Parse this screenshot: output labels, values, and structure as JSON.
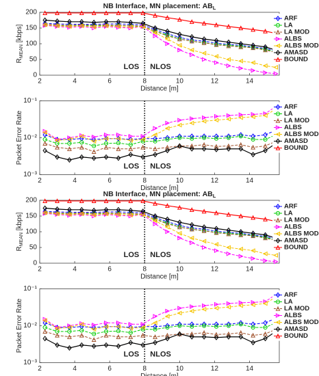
{
  "chart_data": [
    {
      "type": "line",
      "title": "NB Interface, MN placement: AB",
      "title_sub": "L",
      "xlabel": "Distance [m]",
      "ylabel": "R",
      "ylabel_sub": "MEAN",
      "ylabel_unit": " [kbps]",
      "log_y": false,
      "xlim": [
        2,
        15.7
      ],
      "xticks": [
        2,
        4,
        6,
        8,
        10,
        12,
        14
      ],
      "ylim": [
        0,
        200
      ],
      "yticks": [
        0,
        50,
        100,
        150,
        200
      ],
      "vline": 8,
      "annotations": [
        "LOS",
        "NLOS"
      ],
      "legend": "upper right",
      "x": [
        2.3,
        3.0,
        3.7,
        4.4,
        5.1,
        5.8,
        6.5,
        7.2,
        7.9,
        8.6,
        9.3,
        10.0,
        10.7,
        11.4,
        12.1,
        12.8,
        13.5,
        14.2,
        14.9,
        15.5
      ],
      "series": [
        {
          "name": "ARF",
          "color": "#0000ff",
          "marker": "diamond",
          "dash": true,
          "values": [
            165,
            163,
            162,
            162,
            162,
            163,
            163,
            162,
            160,
            145,
            132,
            120,
            112,
            108,
            102,
            98,
            95,
            90,
            85,
            78
          ]
        },
        {
          "name": "LA",
          "color": "#00cc00",
          "marker": "circle",
          "dash": true,
          "values": [
            160,
            158,
            157,
            158,
            157,
            158,
            158,
            157,
            155,
            140,
            128,
            115,
            108,
            103,
            98,
            95,
            92,
            88,
            82,
            75
          ]
        },
        {
          "name": "LA MOD",
          "color": "#a0522d",
          "marker": "up",
          "dash": true,
          "values": [
            162,
            160,
            158,
            160,
            158,
            160,
            158,
            158,
            156,
            140,
            125,
            115,
            108,
            103,
            97,
            93,
            90,
            87,
            80,
            72
          ]
        },
        {
          "name": "ALBS",
          "color": "#ff00ff",
          "marker": "right",
          "dash": true,
          "values": [
            158,
            155,
            152,
            155,
            150,
            155,
            152,
            150,
            155,
            125,
            100,
            80,
            65,
            50,
            40,
            30,
            22,
            15,
            8,
            5
          ]
        },
        {
          "name": "ALBS MOD",
          "color": "#f5c400",
          "marker": "left",
          "dash": true,
          "values": [
            160,
            157,
            155,
            157,
            153,
            157,
            155,
            153,
            155,
            135,
            115,
            95,
            80,
            70,
            60,
            50,
            45,
            40,
            30,
            25
          ]
        },
        {
          "name": "AMASD",
          "color": "#000000",
          "marker": "diamond",
          "dash": false,
          "values": [
            175,
            172,
            170,
            170,
            168,
            170,
            170,
            168,
            165,
            150,
            140,
            130,
            122,
            115,
            110,
            105,
            100,
            95,
            90,
            80
          ]
        },
        {
          "name": "BOUND",
          "color": "#ff0000",
          "marker": "up",
          "dash": false,
          "values": [
            198,
            198,
            198,
            198,
            198,
            198,
            198,
            198,
            198,
            190,
            183,
            177,
            170,
            165,
            160,
            155,
            150,
            145,
            140,
            133
          ]
        }
      ]
    },
    {
      "type": "line",
      "xlabel": "Distance [m]",
      "ylabel": "Packet Error Rate",
      "log_y": true,
      "xlim": [
        2,
        15.7
      ],
      "xticks": [
        2,
        4,
        6,
        8,
        10,
        12,
        14
      ],
      "ylim": [
        0.001,
        0.1
      ],
      "yticks": [
        {
          "value": 0.001,
          "label": "10⁻³"
        },
        {
          "value": 0.01,
          "label": "10⁻²"
        },
        {
          "value": 0.1,
          "label": "10⁻¹"
        }
      ],
      "vline": 8,
      "annotations": [
        "LOS",
        "NLOS"
      ],
      "legend": "upper right",
      "x": [
        2.3,
        3.0,
        3.7,
        4.4,
        5.1,
        5.8,
        6.5,
        7.2,
        7.9,
        8.6,
        9.3,
        10.0,
        10.7,
        11.4,
        12.1,
        12.8,
        13.5,
        14.2,
        14.9,
        15.5
      ],
      "series": [
        {
          "name": "ARF",
          "color": "#0000ff",
          "marker": "diamond",
          "dash": true,
          "values": [
            0.012,
            0.009,
            0.009,
            0.0095,
            0.009,
            0.0095,
            0.0095,
            0.009,
            0.0095,
            0.0095,
            0.01,
            0.011,
            0.011,
            0.011,
            0.011,
            0.011,
            0.012,
            0.011,
            0.012,
            0.016
          ]
        },
        {
          "name": "LA",
          "color": "#00cc00",
          "marker": "circle",
          "dash": true,
          "values": [
            0.009,
            0.007,
            0.007,
            0.0075,
            0.006,
            0.007,
            0.0072,
            0.0065,
            0.008,
            0.008,
            0.009,
            0.01,
            0.0095,
            0.01,
            0.0095,
            0.01,
            0.011,
            0.009,
            0.009,
            0.012
          ]
        },
        {
          "name": "LA MOD",
          "color": "#a0522d",
          "marker": "up",
          "dash": true,
          "values": [
            0.007,
            0.0055,
            0.005,
            0.0055,
            0.0042,
            0.0055,
            0.005,
            0.005,
            0.0055,
            0.005,
            0.0055,
            0.006,
            0.006,
            0.0065,
            0.0058,
            0.006,
            0.0065,
            0.0055,
            0.006,
            0.008
          ]
        },
        {
          "name": "ALBS",
          "color": "#ff00ff",
          "marker": "right",
          "dash": true,
          "values": [
            0.015,
            0.009,
            0.01,
            0.0115,
            0.0105,
            0.012,
            0.012,
            0.011,
            0.011,
            0.018,
            0.025,
            0.03,
            0.033,
            0.035,
            0.038,
            0.04,
            0.042,
            0.043,
            0.045,
            0.07
          ]
        },
        {
          "name": "ALBS MOD",
          "color": "#f5c400",
          "marker": "left",
          "dash": true,
          "values": [
            0.014,
            0.0085,
            0.009,
            0.011,
            0.008,
            0.0095,
            0.0095,
            0.0085,
            0.009,
            0.012,
            0.018,
            0.022,
            0.025,
            0.028,
            0.03,
            0.032,
            0.035,
            0.037,
            0.04,
            0.06
          ]
        },
        {
          "name": "AMASD",
          "color": "#000000",
          "marker": "diamond",
          "dash": false,
          "values": [
            0.0045,
            0.003,
            0.0025,
            0.003,
            0.0028,
            0.003,
            0.0028,
            0.0035,
            0.003,
            0.0035,
            0.0045,
            0.006,
            0.005,
            0.005,
            0.0048,
            0.005,
            0.005,
            0.0035,
            0.0045,
            0.007
          ]
        },
        {
          "name": "BOUND",
          "color": "#ff0000",
          "marker": "up",
          "dash": false,
          "values": [
            null,
            null,
            null,
            null,
            null,
            null,
            null,
            null,
            null,
            null,
            null,
            null,
            null,
            null,
            null,
            null,
            null,
            null,
            null,
            null
          ]
        }
      ]
    },
    {
      "type": "line",
      "title": "NB Interface, MN placement: AB",
      "title_sub": "L",
      "xlabel": "Distance [m]",
      "ylabel": "R",
      "ylabel_sub": "MEAN",
      "ylabel_unit": " [kbps]",
      "log_y": false,
      "xlim": [
        2,
        15.7
      ],
      "xticks": [
        2,
        4,
        6,
        8,
        10,
        12,
        14
      ],
      "ylim": [
        0,
        200
      ],
      "yticks": [
        0,
        50,
        100,
        150,
        200
      ],
      "vline": 8,
      "annotations": [
        "LOS",
        "NLOS"
      ],
      "legend": "upper right",
      "x": [
        2.3,
        3.0,
        3.7,
        4.4,
        5.1,
        5.8,
        6.5,
        7.2,
        7.9,
        8.6,
        9.3,
        10.0,
        10.7,
        11.4,
        12.1,
        12.8,
        13.5,
        14.2,
        14.9,
        15.5
      ],
      "series": [
        {
          "name": "ARF",
          "color": "#0000ff",
          "marker": "diamond",
          "dash": true,
          "values": [
            165,
            163,
            162,
            162,
            162,
            163,
            163,
            162,
            160,
            145,
            132,
            120,
            112,
            108,
            102,
            98,
            95,
            90,
            85,
            78
          ]
        },
        {
          "name": "LA",
          "color": "#00cc00",
          "marker": "circle",
          "dash": true,
          "values": [
            160,
            158,
            157,
            158,
            157,
            158,
            158,
            157,
            155,
            140,
            128,
            115,
            108,
            103,
            98,
            95,
            92,
            88,
            82,
            75
          ]
        },
        {
          "name": "LA MOD",
          "color": "#a0522d",
          "marker": "up",
          "dash": true,
          "values": [
            162,
            160,
            158,
            160,
            158,
            160,
            158,
            158,
            156,
            140,
            125,
            115,
            108,
            103,
            97,
            93,
            90,
            87,
            80,
            72
          ]
        },
        {
          "name": "ALBS",
          "color": "#ff00ff",
          "marker": "right",
          "dash": true,
          "values": [
            158,
            155,
            152,
            155,
            150,
            155,
            152,
            150,
            155,
            125,
            100,
            80,
            65,
            50,
            40,
            30,
            22,
            15,
            8,
            5
          ]
        },
        {
          "name": "ALBS MOD",
          "color": "#f5c400",
          "marker": "left",
          "dash": true,
          "values": [
            160,
            157,
            155,
            157,
            153,
            157,
            155,
            153,
            155,
            135,
            115,
            95,
            80,
            70,
            60,
            50,
            45,
            40,
            30,
            25
          ]
        },
        {
          "name": "AMASD",
          "color": "#000000",
          "marker": "diamond",
          "dash": false,
          "values": [
            175,
            172,
            170,
            170,
            168,
            170,
            170,
            168,
            165,
            150,
            140,
            130,
            122,
            115,
            110,
            105,
            100,
            95,
            90,
            80
          ]
        },
        {
          "name": "BOUND",
          "color": "#ff0000",
          "marker": "up",
          "dash": false,
          "values": [
            198,
            198,
            198,
            198,
            198,
            198,
            198,
            198,
            198,
            190,
            183,
            177,
            170,
            165,
            160,
            155,
            150,
            145,
            140,
            133
          ]
        }
      ]
    },
    {
      "type": "line",
      "xlabel": "Distance [m]",
      "ylabel": "Packet Error Rate",
      "log_y": true,
      "xlim": [
        2,
        15.7
      ],
      "xticks": [
        2,
        4,
        6,
        8,
        10,
        12,
        14
      ],
      "ylim": [
        0.001,
        0.1
      ],
      "yticks": [
        {
          "value": 0.001,
          "label": "10⁻³"
        },
        {
          "value": 0.01,
          "label": "10⁻²"
        },
        {
          "value": 0.1,
          "label": "10⁻¹"
        }
      ],
      "vline": 8,
      "annotations": [
        "LOS",
        "NLOS"
      ],
      "legend": "upper right",
      "x": [
        2.3,
        3.0,
        3.7,
        4.4,
        5.1,
        5.8,
        6.5,
        7.2,
        7.9,
        8.6,
        9.3,
        10.0,
        10.7,
        11.4,
        12.1,
        12.8,
        13.5,
        14.2,
        14.9,
        15.5
      ],
      "series": [
        {
          "name": "ARF",
          "color": "#0000ff",
          "marker": "diamond",
          "dash": true,
          "values": [
            0.012,
            0.009,
            0.009,
            0.0095,
            0.009,
            0.0095,
            0.0095,
            0.009,
            0.0095,
            0.0095,
            0.01,
            0.011,
            0.011,
            0.011,
            0.011,
            0.011,
            0.012,
            0.011,
            0.012,
            0.016
          ]
        },
        {
          "name": "LA",
          "color": "#00cc00",
          "marker": "circle",
          "dash": true,
          "values": [
            0.009,
            0.007,
            0.007,
            0.0075,
            0.006,
            0.007,
            0.0072,
            0.0065,
            0.008,
            0.008,
            0.009,
            0.01,
            0.0095,
            0.01,
            0.0095,
            0.01,
            0.011,
            0.009,
            0.009,
            0.012
          ]
        },
        {
          "name": "LA MOD",
          "color": "#a0522d",
          "marker": "up",
          "dash": true,
          "values": [
            0.007,
            0.0055,
            0.005,
            0.0055,
            0.0042,
            0.0055,
            0.005,
            0.005,
            0.0055,
            0.005,
            0.0055,
            0.006,
            0.006,
            0.0065,
            0.0058,
            0.006,
            0.0065,
            0.0055,
            0.006,
            0.008
          ]
        },
        {
          "name": "ALBS",
          "color": "#ff00ff",
          "marker": "right",
          "dash": true,
          "values": [
            0.015,
            0.009,
            0.01,
            0.0115,
            0.0105,
            0.012,
            0.012,
            0.011,
            0.011,
            0.018,
            0.025,
            0.03,
            0.033,
            0.035,
            0.038,
            0.04,
            0.042,
            0.043,
            0.045,
            0.07
          ]
        },
        {
          "name": "ALBS MOD",
          "color": "#f5c400",
          "marker": "left",
          "dash": true,
          "values": [
            0.014,
            0.0085,
            0.009,
            0.011,
            0.008,
            0.0095,
            0.0095,
            0.0085,
            0.009,
            0.012,
            0.018,
            0.022,
            0.025,
            0.028,
            0.03,
            0.032,
            0.035,
            0.037,
            0.04,
            0.06
          ]
        },
        {
          "name": "AMASD",
          "color": "#000000",
          "marker": "diamond",
          "dash": false,
          "values": [
            0.0045,
            0.003,
            0.0025,
            0.003,
            0.0028,
            0.003,
            0.0028,
            0.0035,
            0.003,
            0.0035,
            0.0045,
            0.006,
            0.005,
            0.005,
            0.0048,
            0.005,
            0.005,
            0.0035,
            0.0045,
            0.007
          ]
        },
        {
          "name": "BOUND",
          "color": "#ff0000",
          "marker": "up",
          "dash": false,
          "values": [
            null,
            null,
            null,
            null,
            null,
            null,
            null,
            null,
            null,
            null,
            null,
            null,
            null,
            null,
            null,
            null,
            null,
            null,
            null,
            null
          ]
        }
      ]
    }
  ]
}
